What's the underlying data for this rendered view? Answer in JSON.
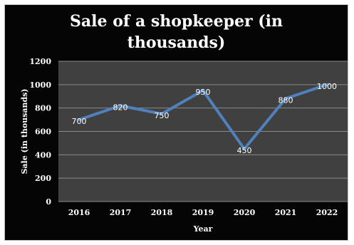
{
  "chart_data": {
    "type": "line",
    "title": "Sale of a shopkeeper (in\nthousands)",
    "xlabel": "Year",
    "ylabel": "Sale (in thousands)",
    "categories": [
      "2016",
      "2017",
      "2018",
      "2019",
      "2020",
      "2021",
      "2022"
    ],
    "series": [
      {
        "values": [
          700,
          820,
          750,
          950,
          450,
          880,
          1000
        ]
      }
    ],
    "ylim": [
      0,
      1200
    ],
    "yticks": [
      0,
      200,
      400,
      600,
      800,
      1000,
      1200
    ],
    "grid": true,
    "legend": "none",
    "colors": {
      "background": "#050505",
      "plot_area": "#404040",
      "line": "#4f81bd",
      "gridline": "#8a8a8a",
      "text": "#ffffff"
    }
  }
}
